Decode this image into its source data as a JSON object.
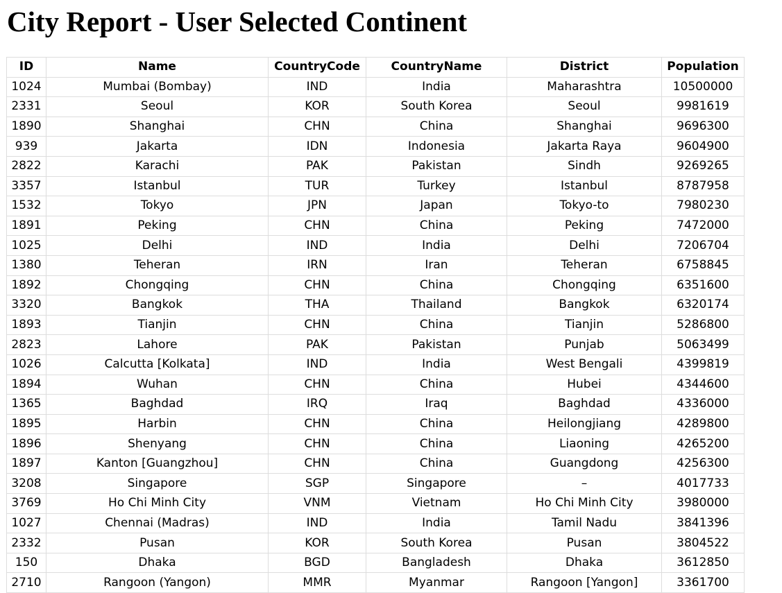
{
  "page": {
    "title": "City Report - User Selected Continent"
  },
  "table": {
    "headers": [
      "ID",
      "Name",
      "CountryCode",
      "CountryName",
      "District",
      "Population"
    ],
    "rows": [
      [
        "1024",
        "Mumbai (Bombay)",
        "IND",
        "India",
        "Maharashtra",
        "10500000"
      ],
      [
        "2331",
        "Seoul",
        "KOR",
        "South Korea",
        "Seoul",
        "9981619"
      ],
      [
        "1890",
        "Shanghai",
        "CHN",
        "China",
        "Shanghai",
        "9696300"
      ],
      [
        "939",
        "Jakarta",
        "IDN",
        "Indonesia",
        "Jakarta Raya",
        "9604900"
      ],
      [
        "2822",
        "Karachi",
        "PAK",
        "Pakistan",
        "Sindh",
        "9269265"
      ],
      [
        "3357",
        "Istanbul",
        "TUR",
        "Turkey",
        "Istanbul",
        "8787958"
      ],
      [
        "1532",
        "Tokyo",
        "JPN",
        "Japan",
        "Tokyo-to",
        "7980230"
      ],
      [
        "1891",
        "Peking",
        "CHN",
        "China",
        "Peking",
        "7472000"
      ],
      [
        "1025",
        "Delhi",
        "IND",
        "India",
        "Delhi",
        "7206704"
      ],
      [
        "1380",
        "Teheran",
        "IRN",
        "Iran",
        "Teheran",
        "6758845"
      ],
      [
        "1892",
        "Chongqing",
        "CHN",
        "China",
        "Chongqing",
        "6351600"
      ],
      [
        "3320",
        "Bangkok",
        "THA",
        "Thailand",
        "Bangkok",
        "6320174"
      ],
      [
        "1893",
        "Tianjin",
        "CHN",
        "China",
        "Tianjin",
        "5286800"
      ],
      [
        "2823",
        "Lahore",
        "PAK",
        "Pakistan",
        "Punjab",
        "5063499"
      ],
      [
        "1026",
        "Calcutta [Kolkata]",
        "IND",
        "India",
        "West Bengali",
        "4399819"
      ],
      [
        "1894",
        "Wuhan",
        "CHN",
        "China",
        "Hubei",
        "4344600"
      ],
      [
        "1365",
        "Baghdad",
        "IRQ",
        "Iraq",
        "Baghdad",
        "4336000"
      ],
      [
        "1895",
        "Harbin",
        "CHN",
        "China",
        "Heilongjiang",
        "4289800"
      ],
      [
        "1896",
        "Shenyang",
        "CHN",
        "China",
        "Liaoning",
        "4265200"
      ],
      [
        "1897",
        "Kanton [Guangzhou]",
        "CHN",
        "China",
        "Guangdong",
        "4256300"
      ],
      [
        "3208",
        "Singapore",
        "SGP",
        "Singapore",
        "–",
        "4017733"
      ],
      [
        "3769",
        "Ho Chi Minh City",
        "VNM",
        "Vietnam",
        "Ho Chi Minh City",
        "3980000"
      ],
      [
        "1027",
        "Chennai (Madras)",
        "IND",
        "India",
        "Tamil Nadu",
        "3841396"
      ],
      [
        "2332",
        "Pusan",
        "KOR",
        "South Korea",
        "Pusan",
        "3804522"
      ],
      [
        "150",
        "Dhaka",
        "BGD",
        "Bangladesh",
        "Dhaka",
        "3612850"
      ],
      [
        "2710",
        "Rangoon (Yangon)",
        "MMR",
        "Myanmar",
        "Rangoon [Yangon]",
        "3361700"
      ]
    ]
  },
  "colors": {
    "background": "#ffffff",
    "text": "#000000",
    "border": "#dddddd"
  }
}
